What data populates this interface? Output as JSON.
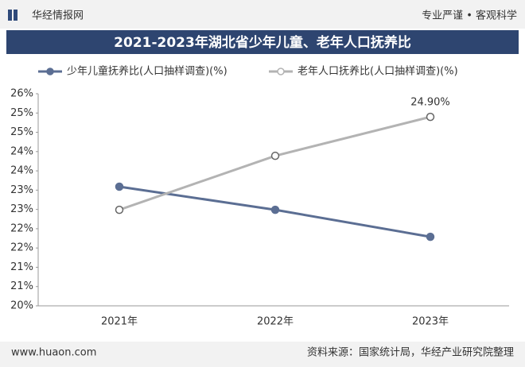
{
  "header": {
    "brand": "华经情报网",
    "slogan": "专业严谨 • 客观科学"
  },
  "chart_data": {
    "type": "line",
    "title": "2021-2023年湖北省少年儿童、老年人口抚养比",
    "categories": [
      "2021年",
      "2022年",
      "2023年"
    ],
    "series": [
      {
        "name": "少年儿童抚养比(人口抽样调查)(%)",
        "color": "#5b6e93",
        "values": [
          23.09,
          22.49,
          21.79
        ]
      },
      {
        "name": "老年人口抚养比(人口抽样调查)(%)",
        "color": "#b3b3b3",
        "values": [
          22.49,
          23.89,
          24.9
        ],
        "value_labels": [
          null,
          null,
          "24.90%"
        ]
      }
    ],
    "ylim": [
      20,
      25.5
    ],
    "yticks": [
      {
        "value": 20,
        "label": "20%"
      },
      {
        "value": 20.5,
        "label": "21%"
      },
      {
        "value": 21,
        "label": "21%"
      },
      {
        "value": 21.5,
        "label": "22%"
      },
      {
        "value": 22,
        "label": "22%"
      },
      {
        "value": 22.5,
        "label": "23%"
      },
      {
        "value": 23,
        "label": "23%"
      },
      {
        "value": 23.5,
        "label": "24%"
      },
      {
        "value": 24,
        "label": "24%"
      },
      {
        "value": 24.5,
        "label": "25%"
      },
      {
        "value": 25,
        "label": "25%"
      },
      {
        "value": 25.5,
        "label": "26%"
      }
    ],
    "grid": false
  },
  "footer": {
    "website": "www.huaon.com",
    "source": "资料来源：国家统计局，华经产业研究院整理"
  }
}
